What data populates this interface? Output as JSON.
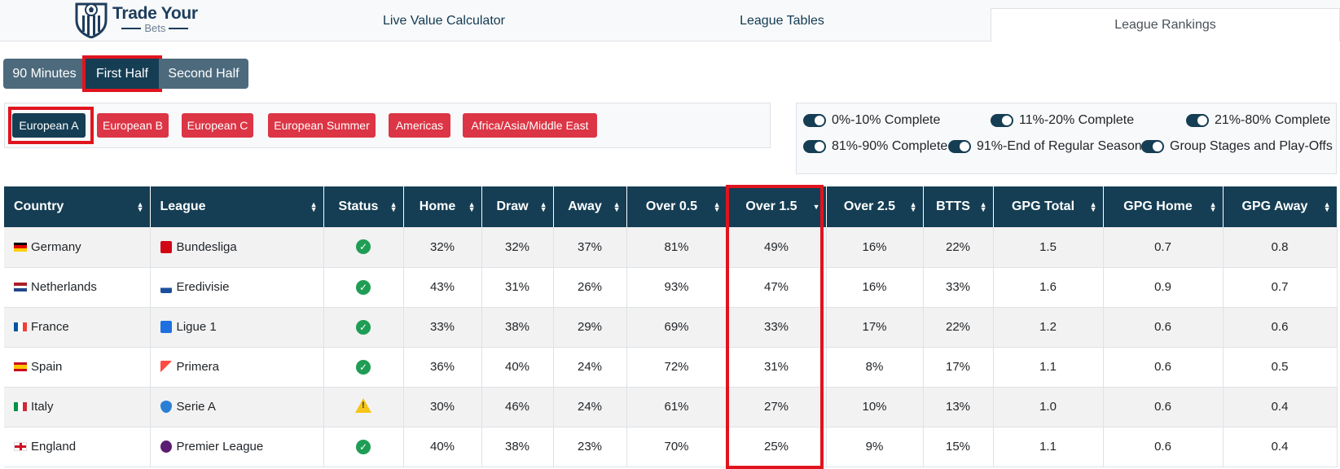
{
  "brand": {
    "name": "Trade Your",
    "sub": "Bets"
  },
  "nav": {
    "tabs": [
      {
        "label": "Live Value Calculator"
      },
      {
        "label": "League Tables"
      },
      {
        "label": "League Rankings"
      }
    ],
    "active": "League Rankings"
  },
  "period": {
    "buttons": [
      "90 Minutes",
      "First Half",
      "Second Half"
    ],
    "selected": "First Half"
  },
  "regions": {
    "buttons": [
      "European A",
      "European B",
      "European C",
      "European Summer",
      "Americas",
      "Africa/Asia/Middle East"
    ],
    "selected": "European A"
  },
  "progress": {
    "toggles": [
      {
        "label": "0%-10% Complete",
        "on": true
      },
      {
        "label": "11%-20% Complete",
        "on": true
      },
      {
        "label": "21%-80% Complete",
        "on": true
      },
      {
        "label": "81%-90% Complete",
        "on": true
      },
      {
        "label": "91%-End of Regular Season",
        "on": true
      },
      {
        "label": "Group Stages and Play-Offs",
        "on": true
      }
    ]
  },
  "table": {
    "headers": [
      "Country",
      "League",
      "Status",
      "Home",
      "Draw",
      "Away",
      "Over 0.5",
      "Over 1.5",
      "Over 2.5",
      "BTTS",
      "GPG Total",
      "GPG Home",
      "GPG Away"
    ],
    "sorted_column": "Over 1.5",
    "sort_direction": "descending",
    "rows": [
      {
        "country": "Germany",
        "league": "Bundesliga",
        "status": "ok",
        "home": "32%",
        "draw": "32%",
        "away": "37%",
        "over05": "81%",
        "over15": "49%",
        "over25": "16%",
        "btts": "22%",
        "gpg_total": "1.5",
        "gpg_home": "0.7",
        "gpg_away": "0.8"
      },
      {
        "country": "Netherlands",
        "league": "Eredivisie",
        "status": "ok",
        "home": "43%",
        "draw": "31%",
        "away": "26%",
        "over05": "93%",
        "over15": "47%",
        "over25": "16%",
        "btts": "33%",
        "gpg_total": "1.6",
        "gpg_home": "0.9",
        "gpg_away": "0.7"
      },
      {
        "country": "France",
        "league": "Ligue 1",
        "status": "ok",
        "home": "33%",
        "draw": "38%",
        "away": "29%",
        "over05": "69%",
        "over15": "33%",
        "over25": "17%",
        "btts": "22%",
        "gpg_total": "1.2",
        "gpg_home": "0.6",
        "gpg_away": "0.6"
      },
      {
        "country": "Spain",
        "league": "Primera",
        "status": "ok",
        "home": "36%",
        "draw": "40%",
        "away": "24%",
        "over05": "72%",
        "over15": "31%",
        "over25": "8%",
        "btts": "17%",
        "gpg_total": "1.1",
        "gpg_home": "0.6",
        "gpg_away": "0.5"
      },
      {
        "country": "Italy",
        "league": "Serie A",
        "status": "warning",
        "home": "30%",
        "draw": "46%",
        "away": "24%",
        "over05": "61%",
        "over15": "27%",
        "over25": "10%",
        "btts": "13%",
        "gpg_total": "1.0",
        "gpg_home": "0.6",
        "gpg_away": "0.4"
      },
      {
        "country": "England",
        "league": "Premier League",
        "status": "ok",
        "home": "40%",
        "draw": "38%",
        "away": "23%",
        "over05": "70%",
        "over15": "25%",
        "over25": "9%",
        "btts": "15%",
        "gpg_total": "1.1",
        "gpg_home": "0.6",
        "gpg_away": "0.4"
      }
    ]
  },
  "colors": {
    "primary": "#153e54",
    "secondary": "#4d6a7d",
    "region_button": "#dc3545",
    "highlight": "#e0141f",
    "ok": "#1f9d55",
    "warning": "#f5c518"
  }
}
